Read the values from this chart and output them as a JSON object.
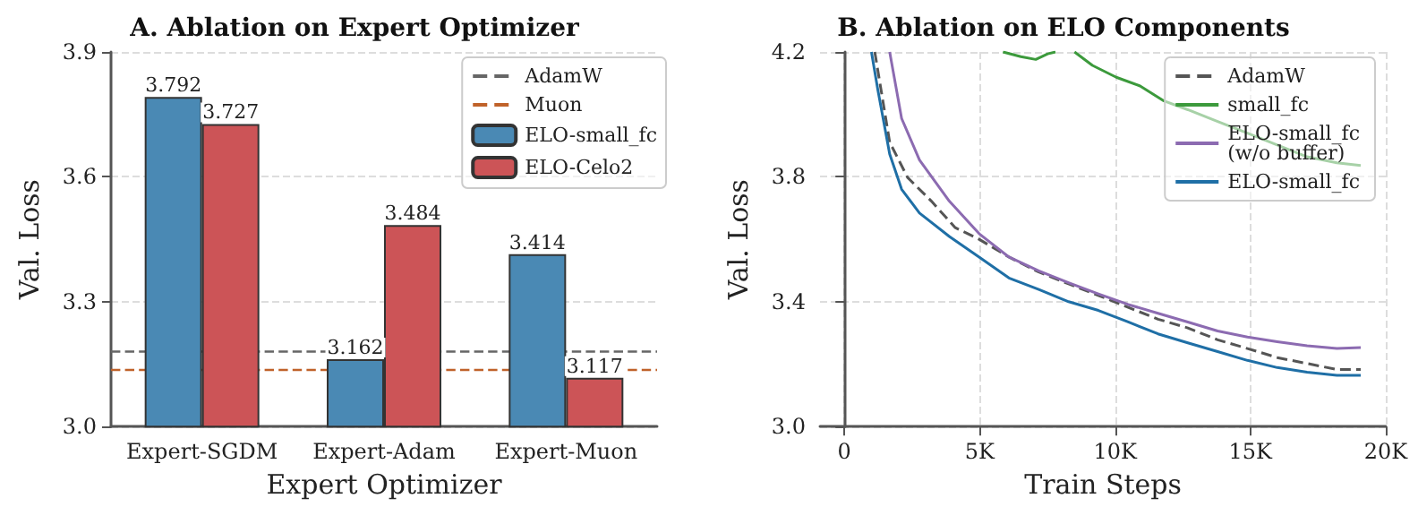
{
  "chart_data": [
    {
      "type": "bar",
      "title": "A. Ablation on Expert Optimizer",
      "xlabel": "Expert Optimizer",
      "ylabel": "Val. Loss",
      "categories": [
        "Expert-SGDM",
        "Expert-Adam",
        "Expert-Muon"
      ],
      "series": [
        {
          "name": "ELO-small_fc",
          "color": "#4a89b4",
          "values": [
            3.792,
            3.162,
            3.414
          ]
        },
        {
          "name": "ELO-Celo2",
          "color": "#cc5457",
          "values": [
            3.727,
            3.484,
            3.117
          ]
        }
      ],
      "ref_lines": [
        {
          "axis": "y",
          "value": 3.18,
          "label": "AdamW",
          "color": "#666666",
          "line_style": "dashed"
        },
        {
          "axis": "y",
          "value": 3.136,
          "label": "Muon",
          "color": "#c0622a",
          "line_style": "dashed"
        }
      ],
      "ylim": [
        3.0,
        3.9
      ],
      "yticks": [
        {
          "value": 3.0,
          "label": "3.0"
        },
        3.3,
        3.6,
        3.9
      ],
      "data_labels": true,
      "grid": "y",
      "legend": "top right"
    },
    {
      "type": "line",
      "title": "B. Ablation on ELO Components",
      "xlabel": "Train Steps",
      "ylabel": "Val. Loss",
      "series": [
        {
          "name": "AdamW",
          "color": "#555555",
          "line_style": "dashed",
          "x": [
            1123,
            1674,
            2335,
            3216,
            4097,
            4978,
            6079,
            7181,
            8282,
            9383,
            10485,
            11586,
            12687,
            13789,
            14890,
            15991,
            17093,
            18194,
            19075
          ],
          "values": [
            4.2,
            3.911,
            3.798,
            3.722,
            3.637,
            3.6,
            3.543,
            3.495,
            3.457,
            3.42,
            3.382,
            3.344,
            3.316,
            3.278,
            3.25,
            3.221,
            3.202,
            3.183,
            3.183
          ]
        },
        {
          "name": "small_fc",
          "color": "#3c9a3c",
          "x": [
            5859,
            6520,
            7070,
            7511,
            7800,
            8100,
            8502,
            9163,
            10044,
            10925,
            11806,
            12687,
            13789,
            14890,
            15991,
            17093,
            18194,
            19075
          ],
          "values": [
            4.2,
            4.185,
            4.176,
            4.194,
            4.2,
            null,
            4.2,
            4.157,
            4.119,
            4.091,
            4.043,
            4.015,
            3.977,
            3.94,
            3.902,
            3.864,
            3.845,
            3.836
          ]
        },
        {
          "name": "ELO-small_fc (w/o buffer)",
          "color": "#8c6bb1",
          "x": [
            1674,
            2115,
            2775,
            3877,
            4978,
            6079,
            7181,
            8282,
            9383,
            10485,
            11586,
            12687,
            13789,
            14890,
            15991,
            17093,
            18194,
            19075
          ],
          "values": [
            4.2,
            3.987,
            3.854,
            3.722,
            3.618,
            3.543,
            3.499,
            3.461,
            3.425,
            3.391,
            3.363,
            3.335,
            3.306,
            3.287,
            3.272,
            3.259,
            3.25,
            3.253
          ]
        },
        {
          "name": "ELO-small_fc",
          "color": "#1f6fa6",
          "x": [
            1000,
            1233,
            1674,
            2115,
            2775,
            3877,
            4978,
            6079,
            7181,
            8282,
            9383,
            10485,
            11586,
            12687,
            13789,
            14890,
            15991,
            17093,
            18194,
            19075
          ],
          "values": [
            4.2,
            4.08,
            3.873,
            3.76,
            3.684,
            3.609,
            3.543,
            3.476,
            3.439,
            3.4,
            3.372,
            3.335,
            3.297,
            3.268,
            3.24,
            3.212,
            3.189,
            3.174,
            3.164,
            3.164
          ]
        }
      ],
      "xlim": [
        -900,
        20000
      ],
      "xticks": [
        {
          "value": 0,
          "label": "0"
        },
        {
          "value": 5000,
          "label": "5K"
        },
        {
          "value": 10000,
          "label": "10K"
        },
        {
          "value": 15000,
          "label": "15K"
        },
        {
          "value": 20000,
          "label": "20K"
        }
      ],
      "ylim": [
        3.0,
        4.2
      ],
      "yticks": [
        {
          "value": 3.0,
          "label": "3.0"
        },
        3.4,
        3.8,
        4.2
      ],
      "grid": true,
      "legend": "top right",
      "marker": "none"
    }
  ]
}
